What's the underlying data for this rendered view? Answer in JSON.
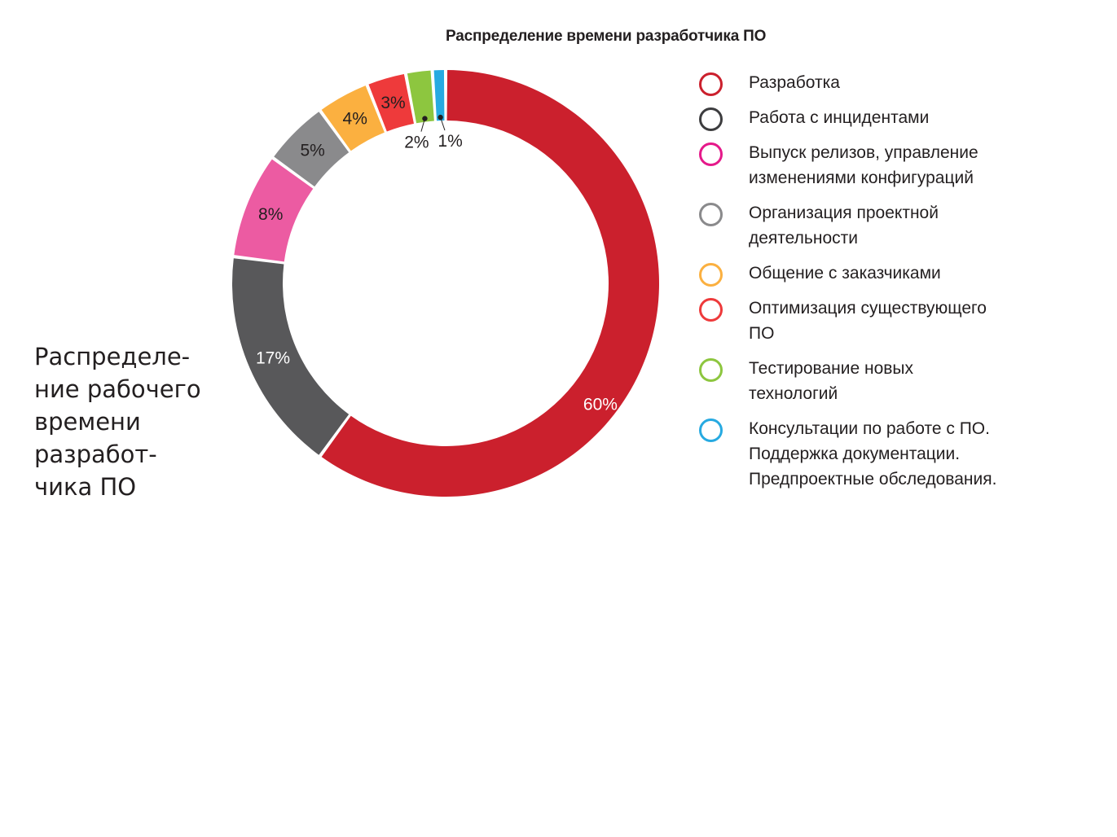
{
  "chart_data": {
    "type": "pie",
    "variant": "donut",
    "title": "Распределение времени разработчика ПО",
    "legend_position": "right",
    "slices": [
      {
        "name": "Разработка",
        "value": 60,
        "label": "60%",
        "color": "#cb202d",
        "legend_color": "#cb202d",
        "label_color": "#ffffff"
      },
      {
        "name": "Работа с инцидентами",
        "value": 17,
        "label": "17%",
        "color": "#58585a",
        "legend_color": "#3d3d3f",
        "label_color": "#ffffff"
      },
      {
        "name": "Выпуск релизов, управление\nизменениями конфигураций",
        "value": 8,
        "label": "8%",
        "color": "#ec5ba2",
        "legend_color": "#e5198a",
        "label_color": "#231f20"
      },
      {
        "name": "Организация проектной\nдеятельности",
        "value": 5,
        "label": "5%",
        "color": "#8a8a8c",
        "legend_color": "#8a8a8c",
        "label_color": "#231f20"
      },
      {
        "name": "Общение с заказчиками",
        "value": 4,
        "label": "4%",
        "color": "#fbb040",
        "legend_color": "#fbb040",
        "label_color": "#231f20"
      },
      {
        "name": "Оптимизация существующего\nПО",
        "value": 3,
        "label": "3%",
        "color": "#ee3a3b",
        "legend_color": "#ee3a3b",
        "label_color": "#231f20"
      },
      {
        "name": "Тестирование новых\nтехнологий",
        "value": 2,
        "label": "2%",
        "color": "#8dc63f",
        "legend_color": "#8dc63f",
        "label_color": "#231f20",
        "label_outside": true
      },
      {
        "name": "Консультации по работе с ПО.\nПоддержка документации.\nПредпроектные обследования.",
        "value": 1,
        "label": "1%",
        "color": "#27aae1",
        "legend_color": "#27aae1",
        "label_color": "#231f20",
        "label_outside": true
      }
    ]
  },
  "caption": "Распределе-\nние рабочего\nвремени\nразработ-\nчика ПО"
}
